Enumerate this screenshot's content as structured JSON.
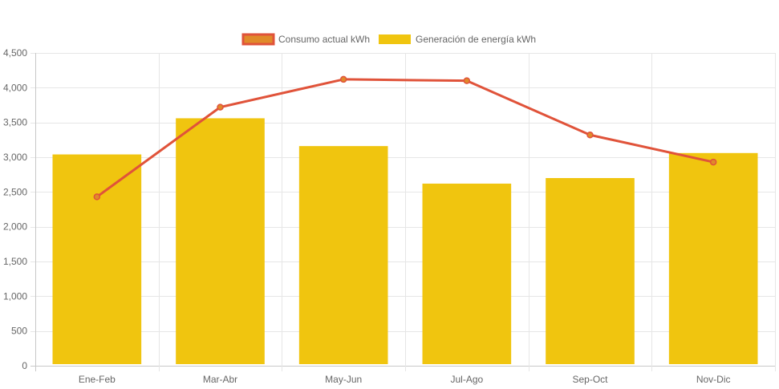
{
  "chart_data": {
    "type": "bar",
    "title": "",
    "xlabel": "",
    "ylabel": "",
    "categories": [
      "Ene-Feb",
      "Mar-Abr",
      "May-Jun",
      "Jul-Ago",
      "Sep-Oct",
      "Nov-Dic"
    ],
    "ylim": [
      0,
      4500
    ],
    "y_ticks": [
      "0",
      "500",
      "1,000",
      "1,500",
      "2,000",
      "2,500",
      "3,000",
      "3,500",
      "4,000",
      "4,500"
    ],
    "grid": true,
    "legend_position": "top-center",
    "series": [
      {
        "name": "Consumo actual kWh",
        "type": "line",
        "color": "#e0533a",
        "legend_fill": "#e08a2a",
        "values": [
          2430,
          3720,
          4120,
          4100,
          3320,
          2930
        ]
      },
      {
        "name": "Generación de energía kWh",
        "type": "bar",
        "color": "#f0c50f",
        "values": [
          3040,
          3560,
          3160,
          2620,
          2700,
          3060
        ]
      }
    ]
  }
}
